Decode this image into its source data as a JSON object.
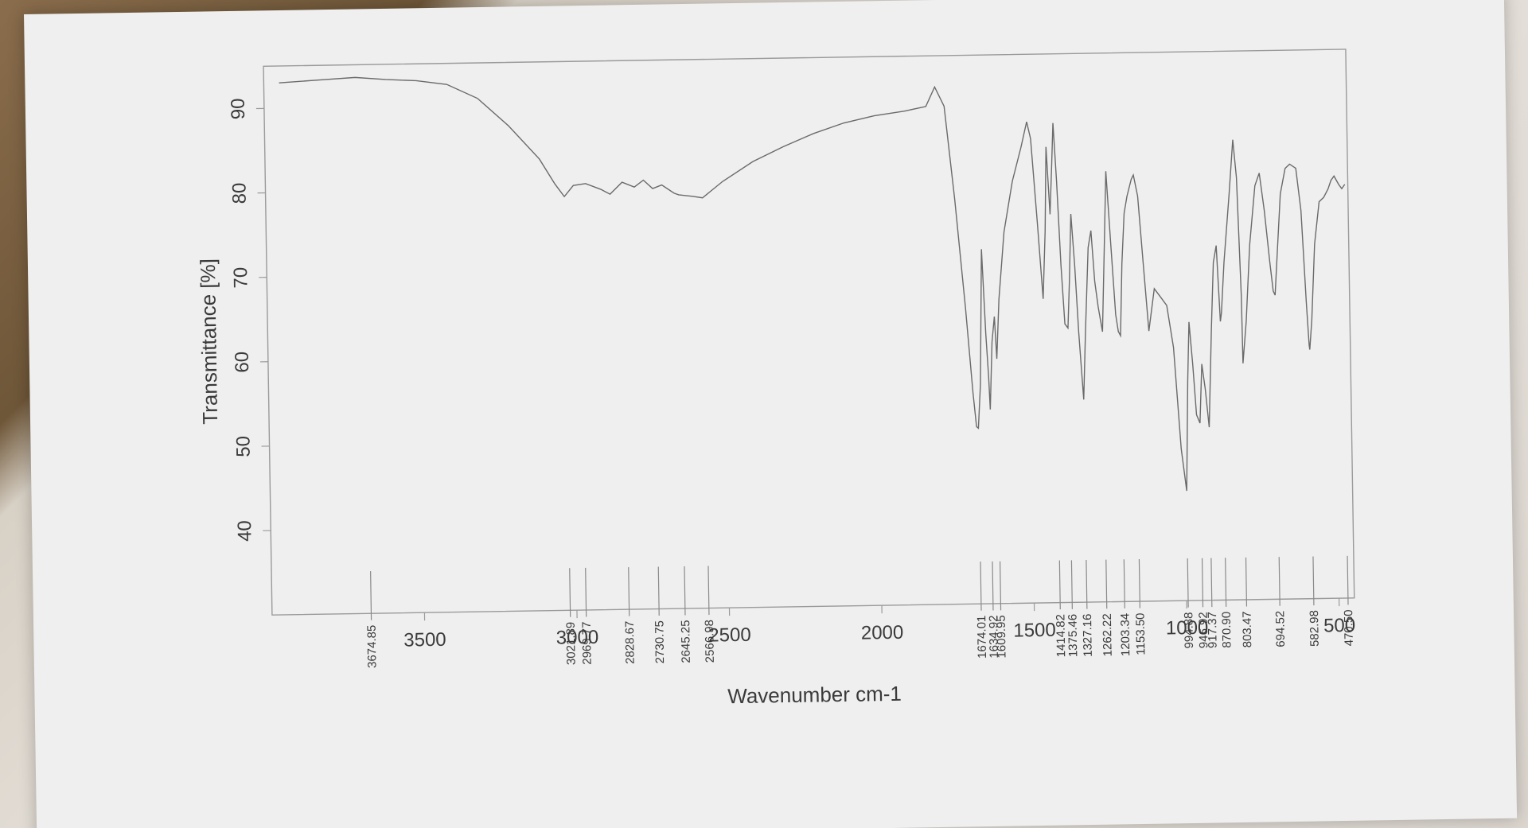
{
  "chart_data": {
    "type": "line",
    "xlabel": "Wavenumber cm-1",
    "ylabel": "Transmittance [%]",
    "xlim": [
      4000,
      450
    ],
    "ylim": [
      30,
      95
    ],
    "x_ticks": [
      3500,
      3000,
      2500,
      2000,
      1500,
      1000,
      500
    ],
    "y_ticks": [
      40,
      50,
      60,
      70,
      80,
      90
    ],
    "grid": false,
    "series": [
      {
        "points": [
          [
            3950,
            93.0
          ],
          [
            3800,
            93.3
          ],
          [
            3700,
            93.5
          ],
          [
            3600,
            93.2
          ],
          [
            3500,
            93.0
          ],
          [
            3400,
            92.5
          ],
          [
            3300,
            90.8
          ],
          [
            3200,
            87.5
          ],
          [
            3100,
            83.5
          ],
          [
            3050,
            80.5
          ],
          [
            3020,
            79.0
          ],
          [
            2990,
            80.3
          ],
          [
            2950,
            80.5
          ],
          [
            2900,
            79.8
          ],
          [
            2870,
            79.2
          ],
          [
            2830,
            80.6
          ],
          [
            2790,
            80.0
          ],
          [
            2760,
            80.8
          ],
          [
            2730,
            79.8
          ],
          [
            2700,
            80.2
          ],
          [
            2660,
            79.2
          ],
          [
            2645,
            79.0
          ],
          [
            2600,
            78.8
          ],
          [
            2567,
            78.6
          ],
          [
            2500,
            80.5
          ],
          [
            2400,
            82.8
          ],
          [
            2300,
            84.5
          ],
          [
            2200,
            86.0
          ],
          [
            2100,
            87.2
          ],
          [
            2000,
            88.0
          ],
          [
            1900,
            88.5
          ],
          [
            1830,
            89.0
          ],
          [
            1800,
            91.3
          ],
          [
            1770,
            89.0
          ],
          [
            1740,
            78.0
          ],
          [
            1710,
            65.0
          ],
          [
            1690,
            55.0
          ],
          [
            1680,
            51.0
          ],
          [
            1674,
            50.8
          ],
          [
            1665,
            56.0
          ],
          [
            1655,
            72.0
          ],
          [
            1645,
            62.0
          ],
          [
            1638,
            57.0
          ],
          [
            1634,
            53.0
          ],
          [
            1625,
            61.0
          ],
          [
            1616,
            64.0
          ],
          [
            1610,
            59.0
          ],
          [
            1600,
            66.0
          ],
          [
            1580,
            74.0
          ],
          [
            1550,
            80.0
          ],
          [
            1520,
            84.0
          ],
          [
            1500,
            87.0
          ],
          [
            1488,
            85.0
          ],
          [
            1470,
            75.0
          ],
          [
            1455,
            66.0
          ],
          [
            1445,
            74.0
          ],
          [
            1438,
            84.0
          ],
          [
            1428,
            76.0
          ],
          [
            1420,
            82.0
          ],
          [
            1414,
            86.8
          ],
          [
            1405,
            80.0
          ],
          [
            1395,
            70.0
          ],
          [
            1385,
            63.0
          ],
          [
            1375,
            62.5
          ],
          [
            1368,
            68.0
          ],
          [
            1360,
            76.0
          ],
          [
            1350,
            70.0
          ],
          [
            1340,
            62.0
          ],
          [
            1332,
            57.0
          ],
          [
            1327,
            54.0
          ],
          [
            1318,
            62.0
          ],
          [
            1305,
            72.0
          ],
          [
            1295,
            74.0
          ],
          [
            1285,
            68.0
          ],
          [
            1275,
            65.0
          ],
          [
            1262,
            62.0
          ],
          [
            1252,
            72.0
          ],
          [
            1243,
            81.0
          ],
          [
            1230,
            72.0
          ],
          [
            1218,
            64.0
          ],
          [
            1210,
            62.0
          ],
          [
            1203,
            61.5
          ],
          [
            1195,
            70.0
          ],
          [
            1185,
            76.0
          ],
          [
            1175,
            78.0
          ],
          [
            1160,
            80.0
          ],
          [
            1153,
            80.5
          ],
          [
            1140,
            78.0
          ],
          [
            1125,
            70.0
          ],
          [
            1110,
            62.0
          ],
          [
            1090,
            67.0
          ],
          [
            1070,
            66.0
          ],
          [
            1050,
            65.0
          ],
          [
            1030,
            60.0
          ],
          [
            1010,
            48.0
          ],
          [
            994,
            43.0
          ],
          [
            985,
            56.0
          ],
          [
            978,
            63.0
          ],
          [
            968,
            58.0
          ],
          [
            958,
            52.0
          ],
          [
            947,
            51.0
          ],
          [
            938,
            58.0
          ],
          [
            928,
            55.0
          ],
          [
            917,
            50.5
          ],
          [
            905,
            62.0
          ],
          [
            895,
            70.0
          ],
          [
            885,
            72.0
          ],
          [
            875,
            63.0
          ],
          [
            871,
            64.0
          ],
          [
            860,
            70.0
          ],
          [
            840,
            78.0
          ],
          [
            825,
            84.5
          ],
          [
            815,
            80.0
          ],
          [
            805,
            66.0
          ],
          [
            803,
            58.0
          ],
          [
            790,
            63.0
          ],
          [
            775,
            72.0
          ],
          [
            755,
            79.0
          ],
          [
            740,
            80.5
          ],
          [
            725,
            76.0
          ],
          [
            710,
            70.0
          ],
          [
            700,
            66.5
          ],
          [
            694,
            66.0
          ],
          [
            685,
            71.0
          ],
          [
            672,
            78.0
          ],
          [
            655,
            81.0
          ],
          [
            640,
            81.5
          ],
          [
            620,
            81.0
          ],
          [
            605,
            76.0
          ],
          [
            592,
            65.0
          ],
          [
            585,
            60.0
          ],
          [
            583,
            59.5
          ],
          [
            575,
            63.0
          ],
          [
            562,
            72.0
          ],
          [
            545,
            77.0
          ],
          [
            530,
            77.5
          ],
          [
            515,
            78.5
          ],
          [
            505,
            79.5
          ],
          [
            495,
            80.0
          ],
          [
            480,
            79.0
          ],
          [
            470,
            78.5
          ],
          [
            460,
            79.0
          ]
        ]
      }
    ],
    "peak_labels": [
      {
        "label": "3674.85",
        "x": 3674.85
      },
      {
        "label": "3021.89",
        "x": 3021.89
      },
      {
        "label": "2969.77",
        "x": 2969.77
      },
      {
        "label": "2828.67",
        "x": 2828.67
      },
      {
        "label": "2730.75",
        "x": 2730.75
      },
      {
        "label": "2645.25",
        "x": 2645.25
      },
      {
        "label": "2566.98",
        "x": 2566.98
      },
      {
        "label": "1674.01",
        "x": 1674.01
      },
      {
        "label": "1634.92",
        "x": 1634.92
      },
      {
        "label": "1609.95",
        "x": 1609.95
      },
      {
        "label": "1414.82",
        "x": 1414.82
      },
      {
        "label": "1375.46",
        "x": 1375.46
      },
      {
        "label": "1327.16",
        "x": 1327.16
      },
      {
        "label": "1262.22",
        "x": 1262.22
      },
      {
        "label": "1203.34",
        "x": 1203.34
      },
      {
        "label": "1153.50",
        "x": 1153.5
      },
      {
        "label": "994.88",
        "x": 994.88
      },
      {
        "label": "946.92",
        "x": 946.92
      },
      {
        "label": "917.37",
        "x": 917.37
      },
      {
        "label": "870.90",
        "x": 870.9
      },
      {
        "label": "803.47",
        "x": 803.47
      },
      {
        "label": "694.52",
        "x": 694.52
      },
      {
        "label": "582.98",
        "x": 582.98
      },
      {
        "label": "470.50",
        "x": 470.5
      }
    ]
  }
}
